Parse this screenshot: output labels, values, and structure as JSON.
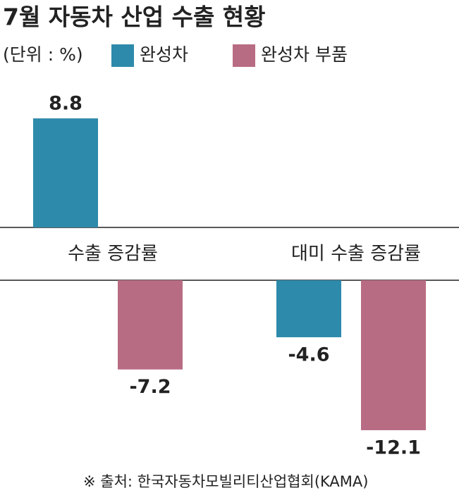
{
  "chart_data": {
    "type": "bar",
    "title": "7월 자동차 산업 수출 현황",
    "unit": "(단위 : %)",
    "categories": [
      "수출 증감률",
      "대미 수출 증감률"
    ],
    "series": [
      {
        "name": "완성차",
        "color": "#2e8aab",
        "values": [
          8.8,
          -4.6
        ]
      },
      {
        "name": "완성차 부품",
        "color": "#b86c83",
        "values": [
          -7.2,
          -12.1
        ]
      }
    ],
    "source": "※ 출처: 한국자동차모빌리티산업협회(KAMA)"
  }
}
